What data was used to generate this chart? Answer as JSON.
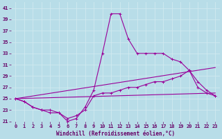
{
  "background_color": "#b8dde8",
  "grid_color": "#d0eaf0",
  "line_color": "#990099",
  "xlabel": "Windchill (Refroidissement éolien,°C)",
  "xlabel_color": "#660066",
  "tick_color": "#660066",
  "ylim": [
    21,
    42
  ],
  "xlim": [
    -0.5,
    23.5
  ],
  "yticks": [
    21,
    23,
    25,
    27,
    29,
    31,
    33,
    35,
    37,
    39,
    41
  ],
  "xticks": [
    0,
    1,
    2,
    3,
    4,
    5,
    6,
    7,
    8,
    9,
    10,
    11,
    12,
    13,
    14,
    15,
    16,
    17,
    18,
    19,
    20,
    21,
    22,
    23
  ],
  "lines": [
    {
      "x": [
        0,
        1,
        2,
        3,
        4,
        5,
        6,
        7,
        8,
        9,
        10,
        11,
        12,
        13,
        14,
        15,
        16,
        17,
        18,
        19,
        20,
        21,
        22,
        23
      ],
      "y": [
        25,
        24.5,
        23.5,
        23,
        23,
        22.5,
        21,
        21.5,
        23.5,
        26.5,
        33,
        40,
        40,
        35.5,
        33,
        33,
        33,
        33,
        32,
        31.5,
        30,
        28,
        26.5,
        25.5
      ],
      "marker": true
    },
    {
      "x": [
        0,
        1,
        2,
        3,
        4,
        5,
        6,
        7,
        8,
        9,
        10,
        11,
        12,
        13,
        14,
        15,
        16,
        17,
        18,
        19,
        20,
        21,
        22,
        23
      ],
      "y": [
        25,
        24.5,
        23.5,
        23,
        22.5,
        22.5,
        21.5,
        22,
        23,
        25.5,
        26,
        26,
        26.5,
        27,
        27,
        27.5,
        28,
        28,
        28.5,
        29,
        30,
        27,
        26,
        25.5
      ],
      "marker": true
    },
    {
      "x": [
        0,
        23
      ],
      "y": [
        25,
        30.5
      ],
      "marker": false
    },
    {
      "x": [
        0,
        23
      ],
      "y": [
        25,
        26
      ],
      "marker": false
    }
  ]
}
